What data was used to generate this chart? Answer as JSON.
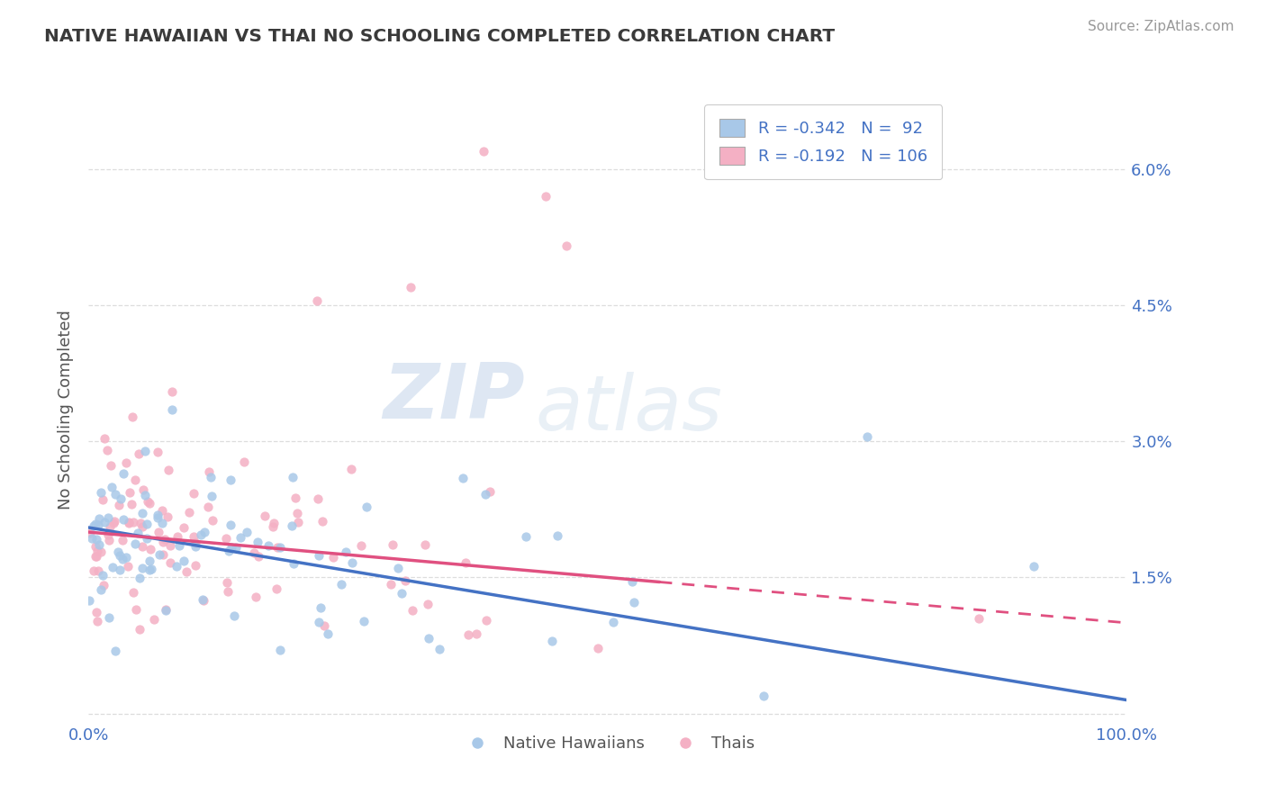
{
  "title": "NATIVE HAWAIIAN VS THAI NO SCHOOLING COMPLETED CORRELATION CHART",
  "source": "Source: ZipAtlas.com",
  "ylabel": "No Schooling Completed",
  "xmin": 0.0,
  "xmax": 100.0,
  "ymin": -0.1,
  "ymax": 6.8,
  "ytick_vals": [
    0.0,
    1.5,
    3.0,
    4.5,
    6.0
  ],
  "ytick_labels": [
    "",
    "1.5%",
    "3.0%",
    "4.5%",
    "6.0%"
  ],
  "xtick_vals": [
    0,
    100
  ],
  "xtick_labels": [
    "0.0%",
    "100.0%"
  ],
  "blue_R": -0.342,
  "blue_N": 92,
  "pink_R": -0.192,
  "pink_N": 106,
  "legend_label_blue": "Native Hawaiians",
  "legend_label_pink": "Thais",
  "blue_dot_color": "#A8C8E8",
  "pink_dot_color": "#F4B0C4",
  "blue_line_color": "#4472C4",
  "pink_line_color": "#E05080",
  "watermark_zip": "ZIP",
  "watermark_atlas": "atlas",
  "title_color": "#3A3A3A",
  "axis_label_color": "#4472C4",
  "grid_color": "#DDDDDD",
  "source_color": "#999999",
  "blue_intercept": 2.05,
  "blue_slope": -0.019,
  "pink_intercept": 2.0,
  "pink_slope": -0.01
}
